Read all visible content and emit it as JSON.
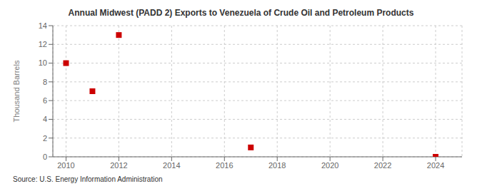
{
  "chart_data": {
    "type": "scatter",
    "title": "Annual Midwest (PADD 2) Exports to Venezuela of Crude Oil and Petroleum Products",
    "ylabel": "Thousand Barrels",
    "annotations": [
      "Source: U.S. Energy Information Administration"
    ],
    "x": [
      2010,
      2011,
      2012,
      2017,
      2024
    ],
    "values": [
      10,
      7,
      13,
      1,
      0
    ],
    "color": "#cc0000",
    "marker": "square",
    "xlim": [
      2009.5,
      2025
    ],
    "ylim": [
      0,
      14
    ],
    "xticks": [
      2010,
      2012,
      2014,
      2016,
      2018,
      2020,
      2022,
      2024
    ],
    "yticks": [
      0,
      2,
      4,
      6,
      8,
      10,
      12,
      14
    ],
    "grid": true
  }
}
